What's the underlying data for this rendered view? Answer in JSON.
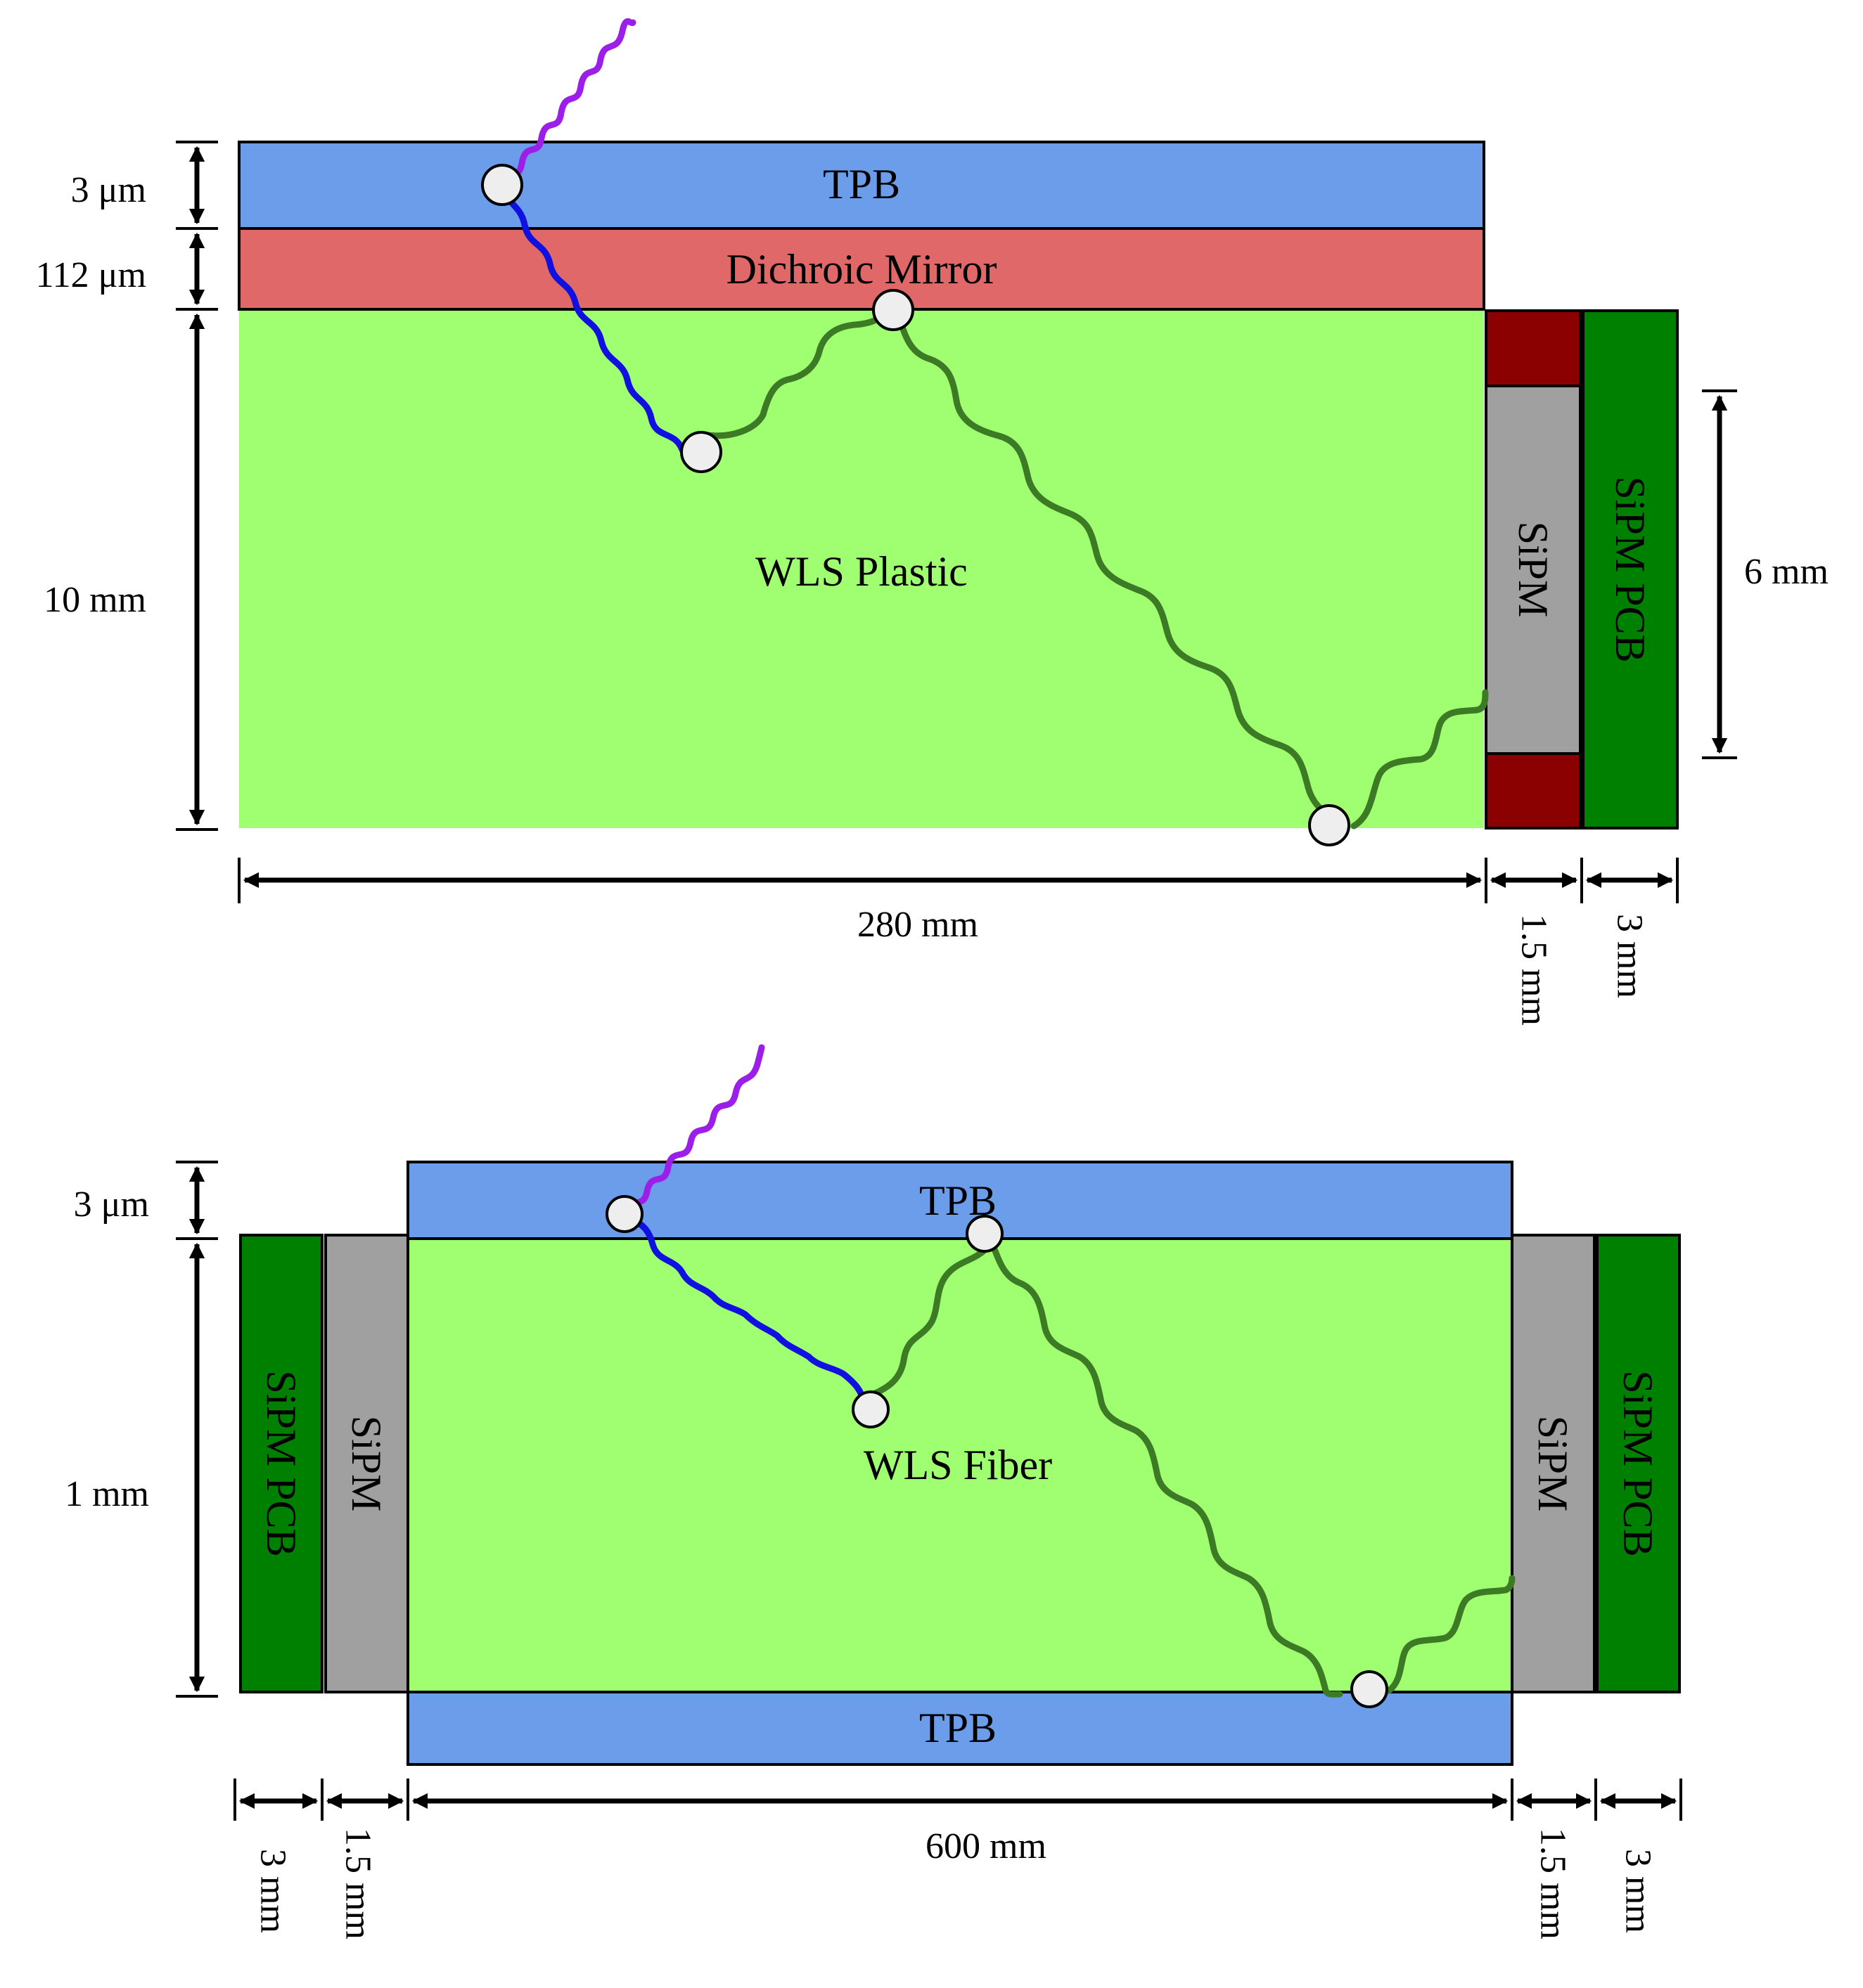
{
  "colors": {
    "tpb": "#6B9DEA",
    "mirror": "#E06868",
    "wls": "#A0FF70",
    "sipm": "#A0A0A0",
    "pcb": "#008000",
    "seal": "#8B0000",
    "uv_photon": "#9B1FE8",
    "blue_photon": "#1010E0",
    "green_photon": "#3C7A25",
    "absorb_point": "#EEEEEE"
  },
  "top": {
    "tpb_label": "TPB",
    "mirror_label": "Dichroic Mirror",
    "wls_label": "WLS Plastic",
    "sipm_label": "SiPM",
    "pcb_label": "SiPM PCB",
    "dim_tpb": "3 μm",
    "dim_mirror": "112 μm",
    "dim_wls": "10 mm",
    "dim_sipm_height": "6 mm",
    "dim_length": "280 mm",
    "dim_sipm": "1.5 mm",
    "dim_pcb": "3 mm"
  },
  "bottom": {
    "tpb_top_label": "TPB",
    "tpb_bottom_label": "TPB",
    "wls_label": "WLS Fiber",
    "sipm_left_label": "SiPM",
    "sipm_right_label": "SiPM",
    "pcb_left_label": "SiPM PCB",
    "pcb_right_label": "SiPM PCB",
    "dim_tpb": "3 μm",
    "dim_wls": "1 mm",
    "dim_length": "600 mm",
    "dim_pcb_left": "3 mm",
    "dim_sipm_left": "1.5 mm",
    "dim_sipm_right": "1.5 mm",
    "dim_pcb_right": "3 mm"
  }
}
